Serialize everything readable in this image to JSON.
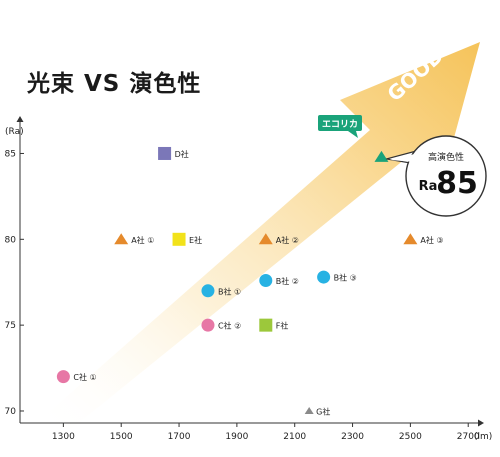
{
  "title": "光束 VS 演色性",
  "chart_data": {
    "type": "scatter",
    "title": "光束 VS 演色性",
    "xlabel": "(lm)",
    "ylabel": "(Ra)",
    "xlim": [
      1150,
      2720
    ],
    "ylim": [
      69.3,
      86.6
    ],
    "x_ticks": [
      1300,
      1500,
      1700,
      1900,
      2100,
      2300,
      2500,
      2700
    ],
    "y_ticks": [
      70,
      75,
      80,
      85
    ],
    "arrow_label": "GOOD",
    "points": [
      {
        "label": "D社",
        "x": 1650,
        "y": 85,
        "shape": "square",
        "color": "#7b77b8"
      },
      {
        "label": "A社 ①",
        "x": 1500,
        "y": 80,
        "shape": "triangle",
        "color": "#e58a2c"
      },
      {
        "label": "E社",
        "x": 1700,
        "y": 80,
        "shape": "square",
        "color": "#f2e21a"
      },
      {
        "label": "A社 ②",
        "x": 2000,
        "y": 80,
        "shape": "triangle",
        "color": "#e58a2c"
      },
      {
        "label": "A社 ③",
        "x": 2500,
        "y": 80,
        "shape": "triangle",
        "color": "#e58a2c"
      },
      {
        "label": "B社 ①",
        "x": 1800,
        "y": 77,
        "shape": "circle",
        "color": "#27b2e3"
      },
      {
        "label": "B社 ②",
        "x": 2000,
        "y": 77.6,
        "shape": "circle",
        "color": "#27b2e3"
      },
      {
        "label": "B社 ③",
        "x": 2200,
        "y": 77.8,
        "shape": "circle",
        "color": "#27b2e3"
      },
      {
        "label": "C社 ②",
        "x": 1800,
        "y": 75,
        "shape": "circle",
        "color": "#e777a5"
      },
      {
        "label": "F社",
        "x": 2000,
        "y": 75,
        "shape": "square",
        "color": "#9cc83b"
      },
      {
        "label": "C社 ①",
        "x": 1300,
        "y": 72,
        "shape": "circle",
        "color": "#e777a5"
      },
      {
        "label": "G社",
        "x": 2150,
        "y": 70,
        "shape": "triangle-small",
        "color": "#8a8a8a"
      }
    ],
    "highlight": {
      "label": "エコリカ",
      "x": 2400,
      "y": 84.8,
      "shape": "triangle",
      "color": "#1aa37a",
      "callout_title": "高演色性",
      "callout_prefix": "Ra",
      "callout_value": "85"
    }
  }
}
